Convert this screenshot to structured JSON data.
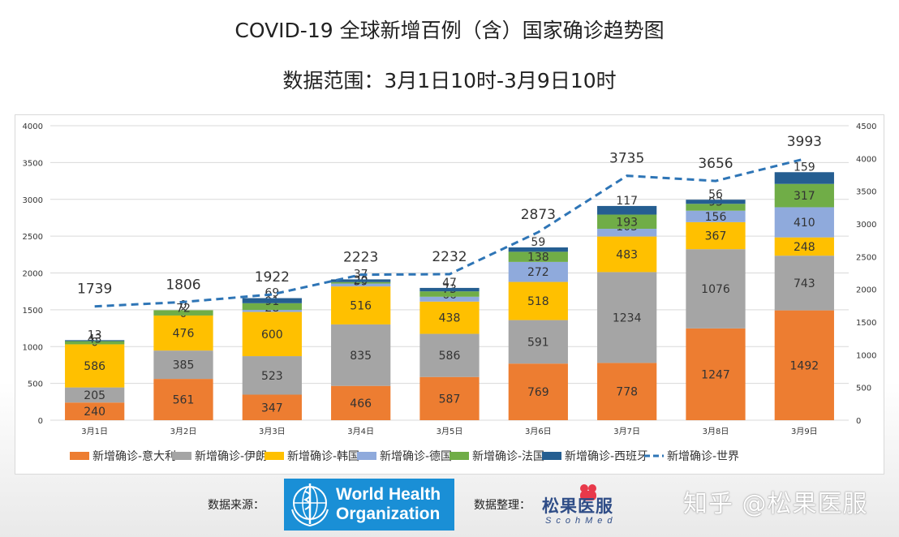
{
  "page": {
    "title_line1": "COVID-19 全球新增百例（含）国家确诊趋势图",
    "title_line2": "数据范围：3月1日10时-3月9日10时"
  },
  "footer": {
    "source_label": "数据来源：",
    "who_line1": "World Health",
    "who_line2": "Organization",
    "compiler_label": "数据整理：",
    "compiler_name": "松果医服",
    "compiler_sub": "ScohMed",
    "watermark": "知乎 @松果医服"
  },
  "colors": {
    "italy": "#ED7D31",
    "iran": "#A5A5A5",
    "korea": "#FFC000",
    "germany": "#8FAADC",
    "france": "#70AD47",
    "spain": "#255E91",
    "world": "#2E75B6"
  },
  "chart_data": {
    "type": "bar",
    "stacked": true,
    "categories": [
      "3月1日",
      "3月2日",
      "3月3日",
      "3月4日",
      "3月5日",
      "3月6日",
      "3月7日",
      "3月8日",
      "3月9日"
    ],
    "series": [
      {
        "name": "新增确诊-意大利",
        "values": [
          240,
          561,
          347,
          466,
          587,
          769,
          778,
          1247,
          1492
        ]
      },
      {
        "name": "新增确诊-伊朗",
        "values": [
          205,
          385,
          523,
          835,
          586,
          591,
          1234,
          1076,
          743
        ]
      },
      {
        "name": "新增确诊-韩国",
        "values": [
          586,
          476,
          600,
          516,
          438,
          518,
          483,
          367,
          248
        ]
      },
      {
        "name": "新增确诊-德国",
        "values": [
          0,
          0,
          28,
          39,
          66,
          272,
          105,
          156,
          410
        ]
      },
      {
        "name": "新增确诊-法国",
        "values": [
          43,
          72,
          91,
          20,
          73,
          138,
          193,
          93,
          317
        ]
      },
      {
        "name": "新增确诊-西班牙",
        "values": [
          13,
          0,
          69,
          37,
          47,
          59,
          117,
          56,
          159
        ]
      }
    ],
    "line_series": {
      "name": "新增确诊-世界",
      "values": [
        1739,
        1806,
        1922,
        2223,
        2232,
        2873,
        3735,
        3656,
        3993
      ]
    },
    "y_left": {
      "min": 0,
      "max": 4000,
      "step": 500
    },
    "y_right": {
      "min": 0,
      "max": 4500,
      "step": 500
    },
    "legend_position": "bottom",
    "grid": true
  }
}
